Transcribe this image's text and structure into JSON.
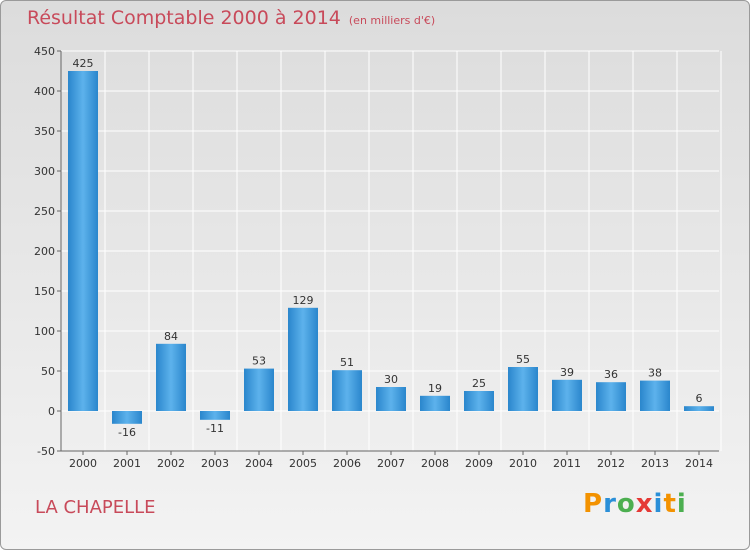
{
  "chart_data": {
    "type": "bar",
    "title": "Résultat Comptable 2000 à 2014",
    "subtitle": "(en milliers d'€)",
    "categories": [
      "2000",
      "2001",
      "2002",
      "2003",
      "2004",
      "2005",
      "2006",
      "2007",
      "2008",
      "2009",
      "2010",
      "2011",
      "2012",
      "2013",
      "2014"
    ],
    "values": [
      425,
      -16,
      84,
      -11,
      53,
      129,
      51,
      30,
      19,
      25,
      55,
      39,
      36,
      38,
      6
    ],
    "value_labels": [
      "425",
      "-16",
      "84",
      "-11",
      "53",
      "129",
      "51",
      "30",
      "19",
      "25",
      "55",
      "39",
      "36",
      "38",
      "6"
    ],
    "ylim": [
      -50,
      450
    ],
    "yticks": [
      -50,
      0,
      50,
      100,
      150,
      200,
      250,
      300,
      350,
      400,
      450
    ],
    "grid": true,
    "xlabel": "",
    "ylabel": ""
  },
  "commune": "LA CHAPELLE",
  "brand": {
    "letters": [
      "P",
      "r",
      "o",
      "x",
      "i",
      "t",
      "i"
    ]
  },
  "colors": {
    "bar_light": "#5aaee8",
    "bar_dark": "#1f77c0",
    "title": "#c84a5a",
    "grid": "#ffffff"
  }
}
